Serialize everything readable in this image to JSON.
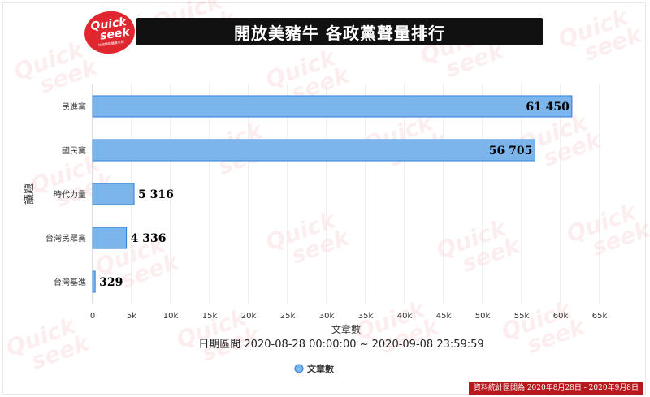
{
  "brand": {
    "logo_quick": "Quick",
    "logo_seek": "seek",
    "logo_tagline": "快搜網路聲量系統",
    "watermark_text": [
      "Quick",
      "seek"
    ]
  },
  "header": {
    "title": "開放美豬牛 各政黨聲量排行"
  },
  "footer": {
    "banner": "資料統計區間為 2020年8月28日 - 2020年9月8日"
  },
  "chart_data": {
    "type": "bar",
    "orientation": "horizontal",
    "categories": [
      "民進黨",
      "國民黨",
      "時代力量",
      "台灣民眾黨",
      "台灣基進"
    ],
    "series": [
      {
        "name": "文章數",
        "values": [
          61450,
          56705,
          5316,
          4336,
          329
        ]
      }
    ],
    "value_labels": [
      "61 450",
      "56 705",
      "5 316",
      "4 336",
      "329"
    ],
    "xlabel": "文章數",
    "ylabel": "議題",
    "subtitle": "日期區間 2020-08-28 00:00:00 ~ 2020-09-08 23:59:59",
    "xlim": [
      0,
      65000
    ],
    "xticks": [
      0,
      5000,
      10000,
      15000,
      20000,
      25000,
      30000,
      35000,
      40000,
      45000,
      50000,
      55000,
      60000,
      65000
    ],
    "xtick_labels": [
      "0",
      "5k",
      "10k",
      "15k",
      "20k",
      "25k",
      "30k",
      "35k",
      "40k",
      "45k",
      "50k",
      "55k",
      "60k",
      "65k"
    ],
    "grid": "vertical",
    "legend_position": "bottom-center",
    "bar_color": "#7cb5ec",
    "bar_border_color": "#2f7ed8"
  }
}
